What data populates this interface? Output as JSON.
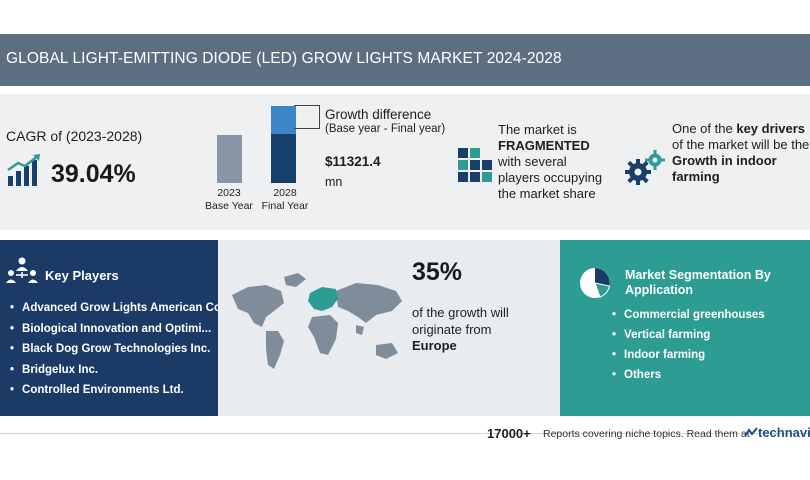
{
  "header": {
    "title": "GLOBAL LIGHT-EMITTING DIODE (LED) GROW LIGHTS MARKET 2024-2028"
  },
  "cagr": {
    "label": "CAGR of (2023-2028)",
    "value": "39.04%",
    "icon": "growth-chart-icon"
  },
  "growth": {
    "bars": [
      {
        "year": "2023",
        "caption": "Base Year",
        "relative_height": 0.63
      },
      {
        "year": "2028",
        "caption": "Final Year",
        "relative_height": 1.0
      }
    ],
    "label": "Growth difference",
    "sublabel": "(Base year - Final year)",
    "value": "$11321.4",
    "unit": "mn"
  },
  "market": {
    "icon": "grid-blocks-icon",
    "line1": "The market is",
    "emphasis": "FRAGMENTED",
    "line3": "with several",
    "line4": "players occupying",
    "line5": "the market share"
  },
  "drivers": {
    "icon": "gears-icon",
    "prefix": "One of the",
    "emphasis": "key drivers",
    "line2": "of the market will be the",
    "line3": "Growth in indoor",
    "line4": "farming"
  },
  "key_players": {
    "title": "Key Players",
    "icon": "people-network-icon",
    "items": [
      "Advanced Grow Lights American Co",
      "Biological Innovation and Optimi...",
      "Black Dog Grow Technologies Inc.",
      "Bridgelux Inc.",
      "Controlled Environments Ltd."
    ]
  },
  "geography": {
    "percent": "35%",
    "text1": "of the growth will",
    "text2": "originate from",
    "region": "Europe",
    "colors": {
      "land": "#7f8c9a",
      "highlight": "#2d9d93"
    }
  },
  "segmentation": {
    "title": "Market Segmentation By Application",
    "icon": "pie-chart-icon",
    "items": [
      "Commercial greenhouses",
      "Vertical farming",
      "Indoor farming",
      "Others"
    ]
  },
  "footer": {
    "count": "17000+",
    "text": "Reports covering niche topics. Read them at",
    "brand": "technavio"
  },
  "colors": {
    "title_bar": "#5d6e80",
    "navy": "#1b3a66",
    "teal": "#2d9d93",
    "accent_blue": "#3a86c8"
  }
}
